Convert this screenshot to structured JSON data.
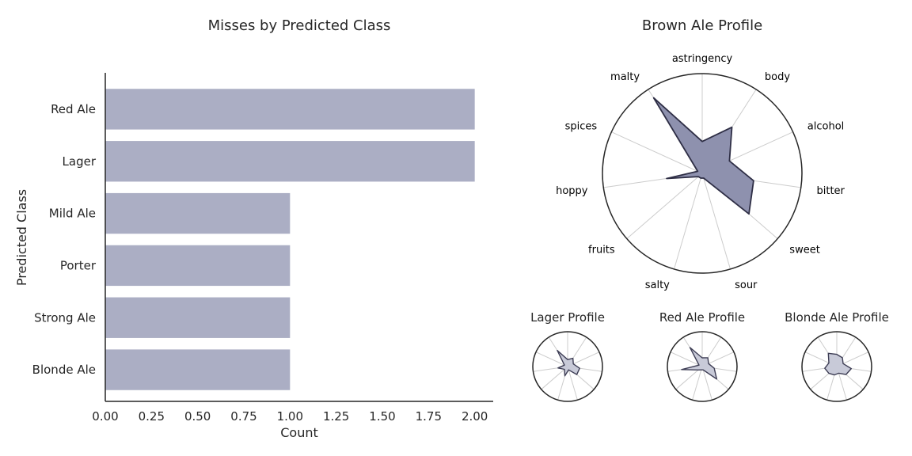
{
  "chart_data": [
    {
      "type": "bar",
      "orientation": "horizontal",
      "title": "Misses by Predicted Class",
      "xlabel": "Count",
      "ylabel": "Predicted Class",
      "categories": [
        "Red Ale",
        "Lager",
        "Mild Ale",
        "Porter",
        "Strong Ale",
        "Blonde Ale"
      ],
      "values": [
        2,
        2,
        1,
        1,
        1,
        1
      ],
      "xlim": [
        0,
        2.1
      ],
      "xticks": [
        "0.00",
        "0.25",
        "0.50",
        "0.75",
        "1.00",
        "1.25",
        "1.50",
        "1.75",
        "2.00"
      ],
      "grid": false,
      "color": "#abaec4"
    },
    {
      "type": "radar",
      "title": "Brown Ale Profile",
      "axes": [
        "astringency",
        "body",
        "alcohol",
        "bitter",
        "sweet",
        "sour",
        "salty",
        "fruits",
        "hoppy",
        "spices",
        "malty"
      ],
      "values": [
        0.32,
        0.55,
        0.3,
        0.52,
        0.62,
        0.05,
        0.05,
        0.05,
        0.36,
        0.05,
        0.9
      ],
      "fill": "#8e91ae",
      "edge": "#2e2e45"
    },
    {
      "type": "radar",
      "title": "Lager Profile",
      "axes": [
        "astringency",
        "body",
        "alcohol",
        "bitter",
        "sweet",
        "sour",
        "salty",
        "fruits",
        "hoppy",
        "spices",
        "malty"
      ],
      "values": [
        0.2,
        0.28,
        0.18,
        0.35,
        0.35,
        0.1,
        0.28,
        0.12,
        0.28,
        0.1,
        0.55
      ],
      "fill": "#c8cad8",
      "edge": "#3e3e55"
    },
    {
      "type": "radar",
      "title": "Red Ale Profile",
      "axes": [
        "astringency",
        "body",
        "alcohol",
        "bitter",
        "sweet",
        "sour",
        "salty",
        "fruits",
        "hoppy",
        "spices",
        "malty"
      ],
      "values": [
        0.25,
        0.3,
        0.2,
        0.35,
        0.55,
        0.1,
        0.1,
        0.15,
        0.6,
        0.1,
        0.65
      ],
      "fill": "#c8cad8",
      "edge": "#3e3e55"
    },
    {
      "type": "radar",
      "title": "Blonde Ale Profile",
      "axes": [
        "astringency",
        "body",
        "alcohol",
        "bitter",
        "sweet",
        "sour",
        "salty",
        "fruits",
        "hoppy",
        "spices",
        "malty"
      ],
      "values": [
        0.35,
        0.3,
        0.2,
        0.42,
        0.35,
        0.2,
        0.25,
        0.3,
        0.35,
        0.25,
        0.45
      ],
      "fill": "#c8cad8",
      "edge": "#3e3e55"
    }
  ]
}
